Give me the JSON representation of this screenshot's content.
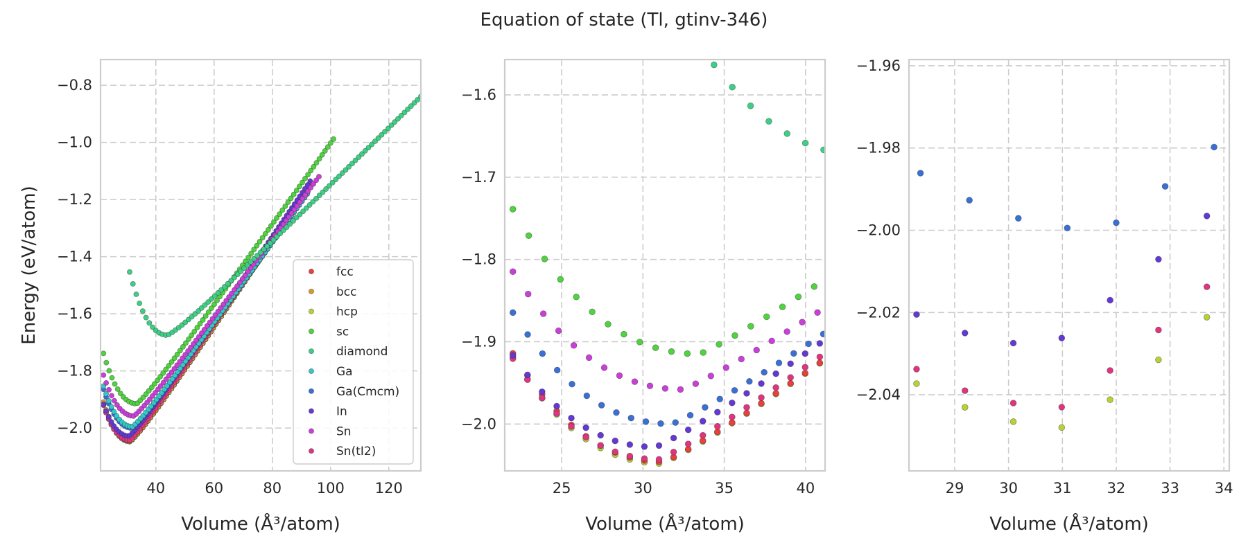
{
  "figure": {
    "title": "Equation of state (Tl, gtinv-346)"
  },
  "colors": {
    "fcc": "#e8413a",
    "bcc": "#d49a2a",
    "hcp": "#b5d334",
    "sc": "#4fd33f",
    "diamond": "#3ecf86",
    "Ga": "#33c9c9",
    "Ga(Cmcm)": "#3a6fd6",
    "In": "#6338d3",
    "Sn": "#cb3ed9",
    "Sn(tI2)": "#e0347e"
  },
  "chart_data": [
    {
      "type": "scatter",
      "title": "",
      "xlabel": "Volume (Å³/atom)",
      "ylabel": "Energy (eV/atom)",
      "xlim": [
        21,
        131
      ],
      "ylim": [
        -2.15,
        -0.71
      ],
      "xticks": [
        40,
        60,
        80,
        100,
        120
      ],
      "yticks": [
        -2.0,
        -1.8,
        -1.6,
        -1.4,
        -1.2,
        -1.0,
        -0.8
      ],
      "grid": true,
      "legend": "lower-right",
      "legend_entries": [
        "fcc",
        "bcc",
        "hcp",
        "sc",
        "diamond",
        "Ga",
        "Ga(Cmcm)",
        "In",
        "Sn",
        "Sn(tI2)"
      ],
      "series": [
        {
          "name": "hcp",
          "curve": {
            "e0": -2.048,
            "v0": 31.2,
            "b": 0.00115,
            "kr": 0.0095,
            "vmin": 22,
            "vmax": 93,
            "n": 80
          }
        },
        {
          "name": "fcc",
          "curve": {
            "e0": -2.046,
            "v0": 31.3,
            "b": 0.00115,
            "kr": 0.0095,
            "vmin": 22,
            "vmax": 93,
            "n": 80
          }
        },
        {
          "name": "bcc",
          "curve": {
            "e0": -2.044,
            "v0": 31.4,
            "b": 0.00115,
            "kr": 0.0095,
            "vmin": 22,
            "vmax": 93,
            "n": 80
          }
        },
        {
          "name": "Sn(tI2)",
          "curve": {
            "e0": -2.043,
            "v0": 31.0,
            "b": 0.00115,
            "kr": 0.0095,
            "vmin": 22,
            "vmax": 93,
            "n": 80
          }
        },
        {
          "name": "In",
          "curve": {
            "e0": -2.028,
            "v0": 30.8,
            "b": 0.0011,
            "kr": 0.0095,
            "vmin": 22,
            "vmax": 93,
            "n": 80
          }
        },
        {
          "name": "Ga(Cmcm)",
          "curve": {
            "e0": -2.0,
            "v0": 31.8,
            "b": 0.00105,
            "kr": 0.009,
            "vmin": 22,
            "vmax": 92,
            "n": 78
          }
        },
        {
          "name": "Ga",
          "curve": {
            "e0": -1.995,
            "v0": 32.0,
            "b": 0.00105,
            "kr": 0.009,
            "vmin": 22,
            "vmax": 92,
            "n": 78
          }
        },
        {
          "name": "Sn",
          "curve": {
            "e0": -1.958,
            "v0": 32.5,
            "b": 0.00095,
            "kr": 0.009,
            "vmin": 22,
            "vmax": 96,
            "n": 80
          }
        },
        {
          "name": "sc",
          "curve": {
            "e0": -1.915,
            "v0": 33.5,
            "b": 0.00095,
            "kr": 0.0095,
            "vmin": 22,
            "vmax": 101,
            "n": 82
          }
        },
        {
          "name": "diamond",
          "curve": {
            "e0": -1.675,
            "v0": 44.0,
            "b": 0.0009,
            "kr": 0.0055,
            "vmin": 31,
            "vmax": 131,
            "n": 90
          }
        }
      ]
    },
    {
      "type": "scatter",
      "xlabel": "Volume (Å³/atom)",
      "ylabel": "",
      "xlim": [
        21.5,
        41.2
      ],
      "ylim": [
        -2.057,
        -1.557
      ],
      "xticks": [
        25,
        30,
        35,
        40
      ],
      "yticks": [
        -2.0,
        -1.9,
        -1.8,
        -1.7,
        -1.6
      ],
      "grid": true,
      "series": [
        {
          "name": "hcp",
          "curve": {
            "e0": -2.048,
            "v0": 31.2,
            "b": 0.00115,
            "kr": 0.0095,
            "vmin": 22,
            "vmax": 93,
            "n": 80
          }
        },
        {
          "name": "fcc",
          "curve": {
            "e0": -2.046,
            "v0": 31.3,
            "b": 0.00115,
            "kr": 0.0095,
            "vmin": 22,
            "vmax": 93,
            "n": 80
          }
        },
        {
          "name": "Sn(tI2)",
          "curve": {
            "e0": -2.043,
            "v0": 31.0,
            "b": 0.00115,
            "kr": 0.0095,
            "vmin": 22,
            "vmax": 93,
            "n": 80
          }
        },
        {
          "name": "In",
          "curve": {
            "e0": -2.028,
            "v0": 30.8,
            "b": 0.0011,
            "kr": 0.0095,
            "vmin": 22,
            "vmax": 93,
            "n": 80
          }
        },
        {
          "name": "Ga(Cmcm)",
          "curve": {
            "e0": -2.0,
            "v0": 31.8,
            "b": 0.00105,
            "kr": 0.009,
            "vmin": 22,
            "vmax": 92,
            "n": 78
          }
        },
        {
          "name": "Sn",
          "curve": {
            "e0": -1.958,
            "v0": 32.5,
            "b": 0.00095,
            "kr": 0.009,
            "vmin": 22,
            "vmax": 96,
            "n": 80
          }
        },
        {
          "name": "sc",
          "curve": {
            "e0": -1.915,
            "v0": 33.5,
            "b": 0.00095,
            "kr": 0.0095,
            "vmin": 22,
            "vmax": 101,
            "n": 82
          }
        },
        {
          "name": "diamond",
          "curve": {
            "e0": -1.675,
            "v0": 44.0,
            "b": 0.0009,
            "kr": 0.0055,
            "vmin": 31,
            "vmax": 131,
            "n": 90
          }
        }
      ]
    },
    {
      "type": "scatter",
      "xlabel": "Volume (Å³/atom)",
      "ylabel": "",
      "xlim": [
        28.15,
        34.1
      ],
      "ylim": [
        -2.0585,
        -1.9585
      ],
      "xticks": [
        29,
        30,
        31,
        32,
        33,
        34
      ],
      "yticks": [
        -2.04,
        -2.02,
        -2.0,
        -1.98,
        -1.96
      ],
      "grid": true,
      "series": [
        {
          "name": "hcp",
          "curve": {
            "e0": -2.048,
            "v0": 31.2,
            "b": 0.00115,
            "kr": 0.0095,
            "vmin": 22,
            "vmax": 93,
            "n": 80
          }
        },
        {
          "name": "Sn(tI2)",
          "curve": {
            "e0": -2.043,
            "v0": 31.0,
            "b": 0.00115,
            "kr": 0.0095,
            "vmin": 22,
            "vmax": 93,
            "n": 80
          }
        },
        {
          "name": "In",
          "curve": {
            "e0": -2.028,
            "v0": 30.8,
            "b": 0.0011,
            "kr": 0.0095,
            "vmin": 22,
            "vmax": 93,
            "n": 80
          }
        },
        {
          "name": "Ga(Cmcm)",
          "curve": {
            "e0": -2.0,
            "v0": 31.8,
            "b": 0.00105,
            "kr": 0.009,
            "vmin": 22,
            "vmax": 92,
            "n": 78
          }
        }
      ]
    }
  ]
}
